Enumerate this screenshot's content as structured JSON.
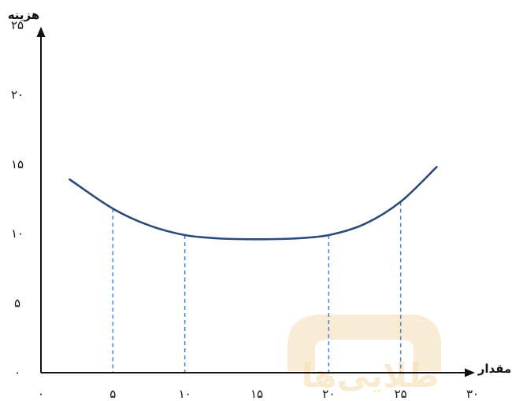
{
  "chart_data": {
    "type": "line",
    "xlabel": "مقدار",
    "ylabel": "هزینه",
    "xlim": [
      0,
      30
    ],
    "ylim": [
      0,
      25
    ],
    "x_ticks": [
      {
        "value": 0,
        "label": "۰"
      },
      {
        "value": 5,
        "label": "۵"
      },
      {
        "value": 10,
        "label": "۱۰"
      },
      {
        "value": 15,
        "label": "۱۵"
      },
      {
        "value": 20,
        "label": "۲۰"
      },
      {
        "value": 25,
        "label": "۲۵"
      },
      {
        "value": 30,
        "label": "۳۰"
      }
    ],
    "y_ticks": [
      {
        "value": 0,
        "label": "۰"
      },
      {
        "value": 5,
        "label": "۵"
      },
      {
        "value": 10,
        "label": "۱۰"
      },
      {
        "value": 15,
        "label": "۱۵"
      },
      {
        "value": 20,
        "label": "۲۰"
      },
      {
        "value": 25,
        "label": "۲۵"
      }
    ],
    "series": [
      {
        "x": [
          2,
          5,
          7.5,
          10,
          12.5,
          15,
          17.5,
          20,
          22.5,
          25,
          27.5
        ],
        "y": [
          13.9,
          11.8,
          10.6,
          9.9,
          9.65,
          9.6,
          9.65,
          9.9,
          10.7,
          12.3,
          14.8
        ],
        "color": "#2b4a78"
      }
    ],
    "reference_lines": [
      {
        "x": 5,
        "y": 11.8
      },
      {
        "x": 10,
        "y": 9.9
      },
      {
        "x": 20,
        "y": 9.9
      },
      {
        "x": 25,
        "y": 12.3
      }
    ],
    "reference_line_color": "#3a86cf",
    "grid": false
  },
  "watermark": {
    "text": "طلایی‌ها",
    "color": "#f3ddb0"
  }
}
